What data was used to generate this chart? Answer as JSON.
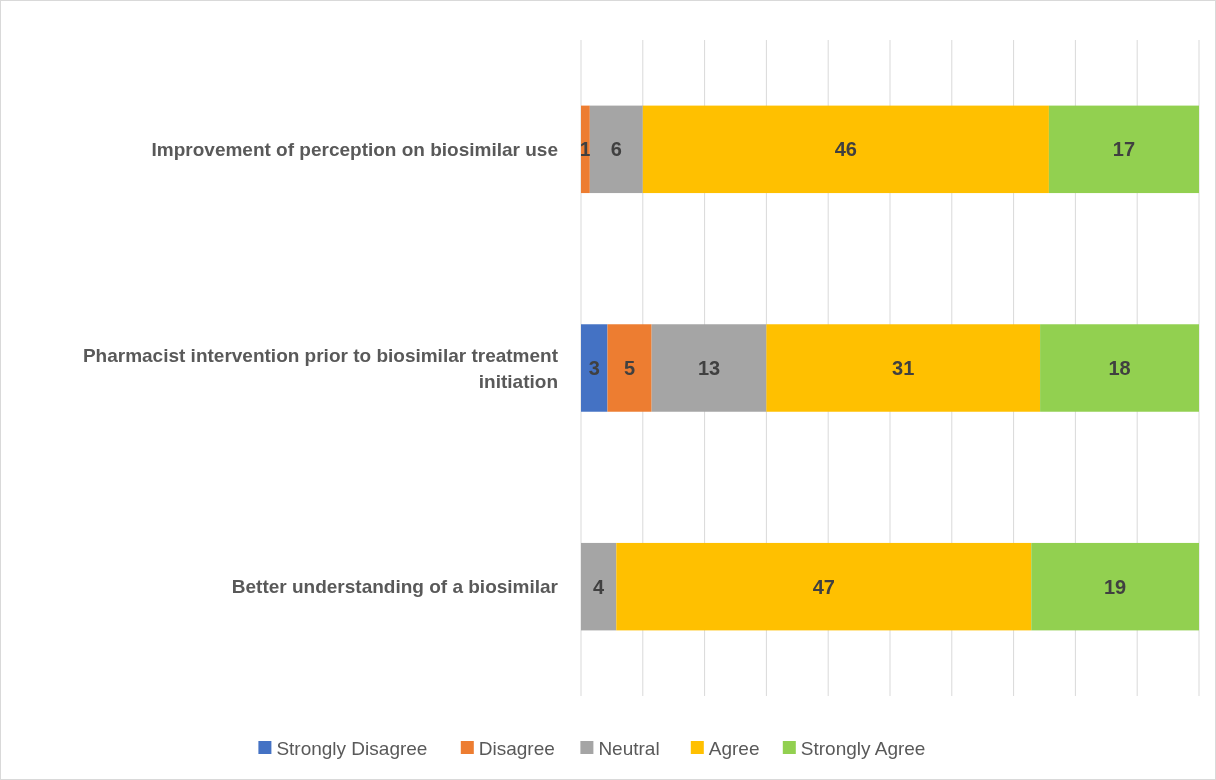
{
  "chart_data": {
    "type": "bar",
    "orientation": "horizontal",
    "stacked": true,
    "categories": [
      "Improvement of perception on biosimilar use",
      "Pharmacist intervention prior to biosimilar treatment initiation",
      "Better understanding of a biosimilar"
    ],
    "series": [
      {
        "name": "Strongly Disagree",
        "color": "#4472c4",
        "values": [
          0,
          3,
          0
        ],
        "value_labels": [
          null,
          "3",
          null
        ]
      },
      {
        "name": "Disagree",
        "color": "#ed7d31",
        "values": [
          1,
          5,
          0
        ],
        "value_labels": [
          "1",
          "5",
          null
        ]
      },
      {
        "name": "Neutral",
        "color": "#a5a5a5",
        "values": [
          6,
          13,
          4
        ],
        "value_labels": [
          "6",
          "13",
          "4"
        ]
      },
      {
        "name": "Agree",
        "color": "#ffc000",
        "values": [
          46,
          31,
          47
        ],
        "value_labels": [
          "46",
          "31",
          "47"
        ]
      },
      {
        "name": "Strongly Agree",
        "color": "#92d050",
        "values": [
          17,
          18,
          19
        ],
        "value_labels": [
          "17",
          "18",
          "19"
        ]
      }
    ],
    "xlim": [
      0,
      70
    ],
    "xticks": [
      {
        "value": 0,
        "label": null
      },
      {
        "value": 7,
        "label": null
      },
      {
        "value": 14,
        "label": null
      },
      {
        "value": 21,
        "label": null
      },
      {
        "value": 28,
        "label": null
      },
      {
        "value": 35,
        "label": null
      },
      {
        "value": 42,
        "label": null
      },
      {
        "value": 49,
        "label": null
      },
      {
        "value": 56,
        "label": null
      },
      {
        "value": 63,
        "label": null
      },
      {
        "value": 70,
        "label": null
      }
    ],
    "tick_labels": "y",
    "grid": "x",
    "legend": "bottom"
  }
}
